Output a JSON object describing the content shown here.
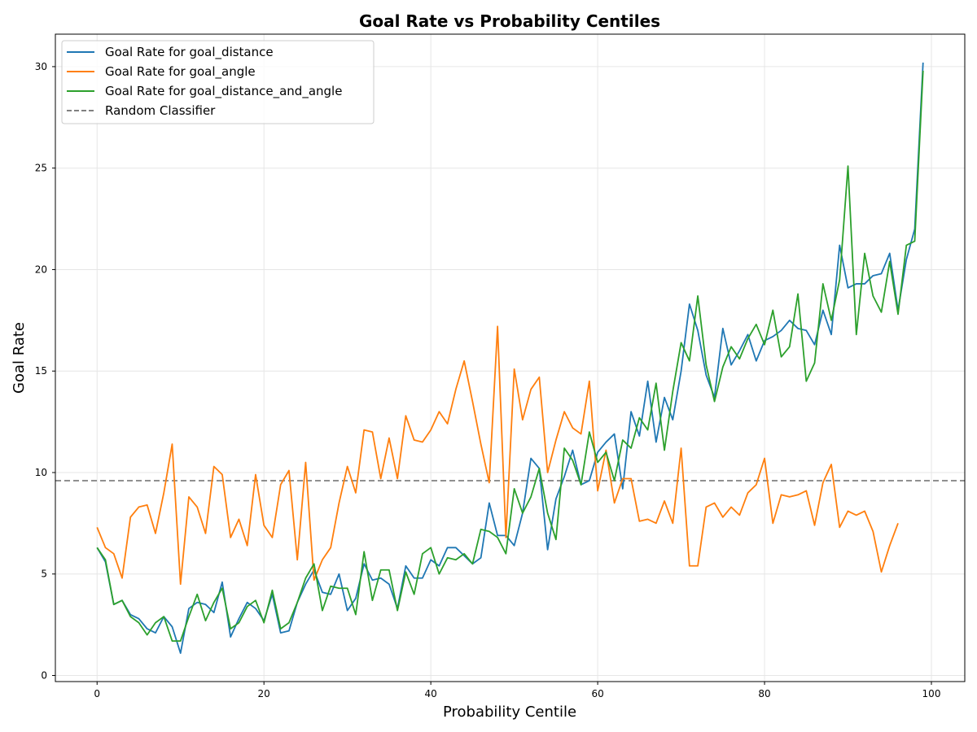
{
  "chart_data": {
    "type": "line",
    "title": "Goal Rate vs Probability Centiles",
    "xlabel": "Probability Centile",
    "ylabel": "Goal Rate",
    "xlim": [
      -5,
      104
    ],
    "ylim": [
      -0.3,
      31.6
    ],
    "xticks": [
      0,
      20,
      40,
      60,
      80,
      100
    ],
    "yticks": [
      0,
      5,
      10,
      15,
      20,
      25,
      30
    ],
    "grid": true,
    "legend_position": "top-left",
    "series": [
      {
        "name": "Goal Rate for goal_distance",
        "color": "#1f77b4",
        "x_start": 0,
        "values": [
          6.3,
          5.6,
          3.5,
          3.7,
          3.0,
          2.8,
          2.3,
          2.1,
          2.9,
          2.4,
          1.1,
          3.3,
          3.6,
          3.5,
          3.1,
          4.6,
          1.9,
          2.8,
          3.6,
          3.3,
          2.7,
          4.0,
          2.1,
          2.2,
          3.6,
          4.5,
          5.2,
          4.1,
          4.0,
          5.0,
          3.2,
          3.8,
          5.5,
          4.7,
          4.8,
          4.5,
          3.3,
          5.4,
          4.8,
          4.8,
          5.7,
          5.4,
          6.3,
          6.3,
          5.9,
          5.5,
          5.8,
          8.5,
          6.9,
          6.9,
          6.4,
          8.0,
          10.7,
          10.2,
          6.2,
          8.7,
          9.8,
          11.1,
          9.4,
          9.6,
          11.0,
          11.5,
          11.9,
          9.2,
          13.0,
          11.8,
          14.5,
          11.5,
          13.7,
          12.6,
          15.0,
          18.3,
          17.0,
          14.8,
          13.7,
          17.1,
          15.3,
          16.0,
          16.8,
          15.5,
          16.5,
          16.7,
          17.0,
          17.5,
          17.1,
          17.0,
          16.3,
          18.0,
          16.8,
          21.2,
          19.1,
          19.3,
          19.3,
          19.7,
          19.8,
          20.8,
          18.0,
          20.5,
          22.0,
          30.2
        ]
      },
      {
        "name": "Goal Rate for goal_angle",
        "color": "#ff7f0e",
        "x_start": 0,
        "values": [
          7.3,
          6.3,
          6.0,
          4.8,
          7.8,
          8.3,
          8.4,
          7.0,
          9.0,
          11.4,
          4.5,
          8.8,
          8.3,
          7.0,
          10.3,
          9.9,
          6.8,
          7.7,
          6.4,
          9.9,
          7.4,
          6.8,
          9.4,
          10.1,
          5.7,
          10.5,
          4.7,
          5.7,
          6.3,
          8.5,
          10.3,
          9.0,
          12.1,
          12.0,
          9.7,
          11.7,
          9.7,
          12.8,
          11.6,
          11.5,
          12.1,
          13.0,
          12.4,
          14.1,
          15.5,
          13.5,
          11.4,
          9.5,
          17.2,
          6.8,
          15.1,
          12.6,
          14.1,
          14.7,
          10.0,
          11.6,
          13.0,
          12.2,
          11.9,
          14.5,
          9.1,
          11.1,
          8.5,
          9.7,
          9.7,
          7.6,
          7.7,
          7.5,
          8.6,
          7.5,
          11.2,
          5.4,
          5.4,
          8.3,
          8.5,
          7.8,
          8.3,
          7.9,
          9.0,
          9.4,
          10.7,
          7.5,
          8.9,
          8.8,
          8.9,
          9.1,
          7.4,
          9.5,
          10.4,
          7.3,
          8.1,
          7.9,
          8.1,
          7.1,
          5.1,
          6.4,
          7.5
        ]
      },
      {
        "name": "Goal Rate for goal_distance_and_angle",
        "color": "#2ca02c",
        "x_start": 0,
        "values": [
          6.3,
          5.7,
          3.5,
          3.7,
          2.9,
          2.6,
          2.0,
          2.6,
          2.9,
          1.7,
          1.7,
          2.9,
          4.0,
          2.7,
          3.6,
          4.3,
          2.3,
          2.6,
          3.4,
          3.7,
          2.6,
          4.2,
          2.3,
          2.6,
          3.6,
          4.8,
          5.5,
          3.2,
          4.4,
          4.3,
          4.3,
          3.0,
          6.1,
          3.7,
          5.2,
          5.2,
          3.2,
          5.1,
          4.0,
          6.0,
          6.3,
          5.0,
          5.8,
          5.7,
          6.0,
          5.5,
          7.2,
          7.1,
          6.8,
          6.0,
          9.2,
          8.0,
          8.8,
          10.2,
          8.0,
          6.7,
          11.2,
          10.6,
          9.4,
          12.0,
          10.5,
          11.0,
          9.6,
          11.6,
          11.2,
          12.7,
          12.1,
          14.4,
          11.1,
          14.0,
          16.4,
          15.5,
          18.7,
          15.3,
          13.5,
          15.2,
          16.2,
          15.6,
          16.6,
          17.3,
          16.3,
          18.0,
          15.7,
          16.2,
          18.8,
          14.5,
          15.4,
          19.3,
          17.5,
          19.5,
          25.1,
          16.8,
          20.8,
          18.7,
          17.9,
          20.4,
          17.8,
          21.2,
          21.4,
          29.8
        ]
      }
    ],
    "reference_line": {
      "name": "Random Classifier",
      "y": 9.6,
      "color": "#808080",
      "style": "dashed"
    }
  }
}
